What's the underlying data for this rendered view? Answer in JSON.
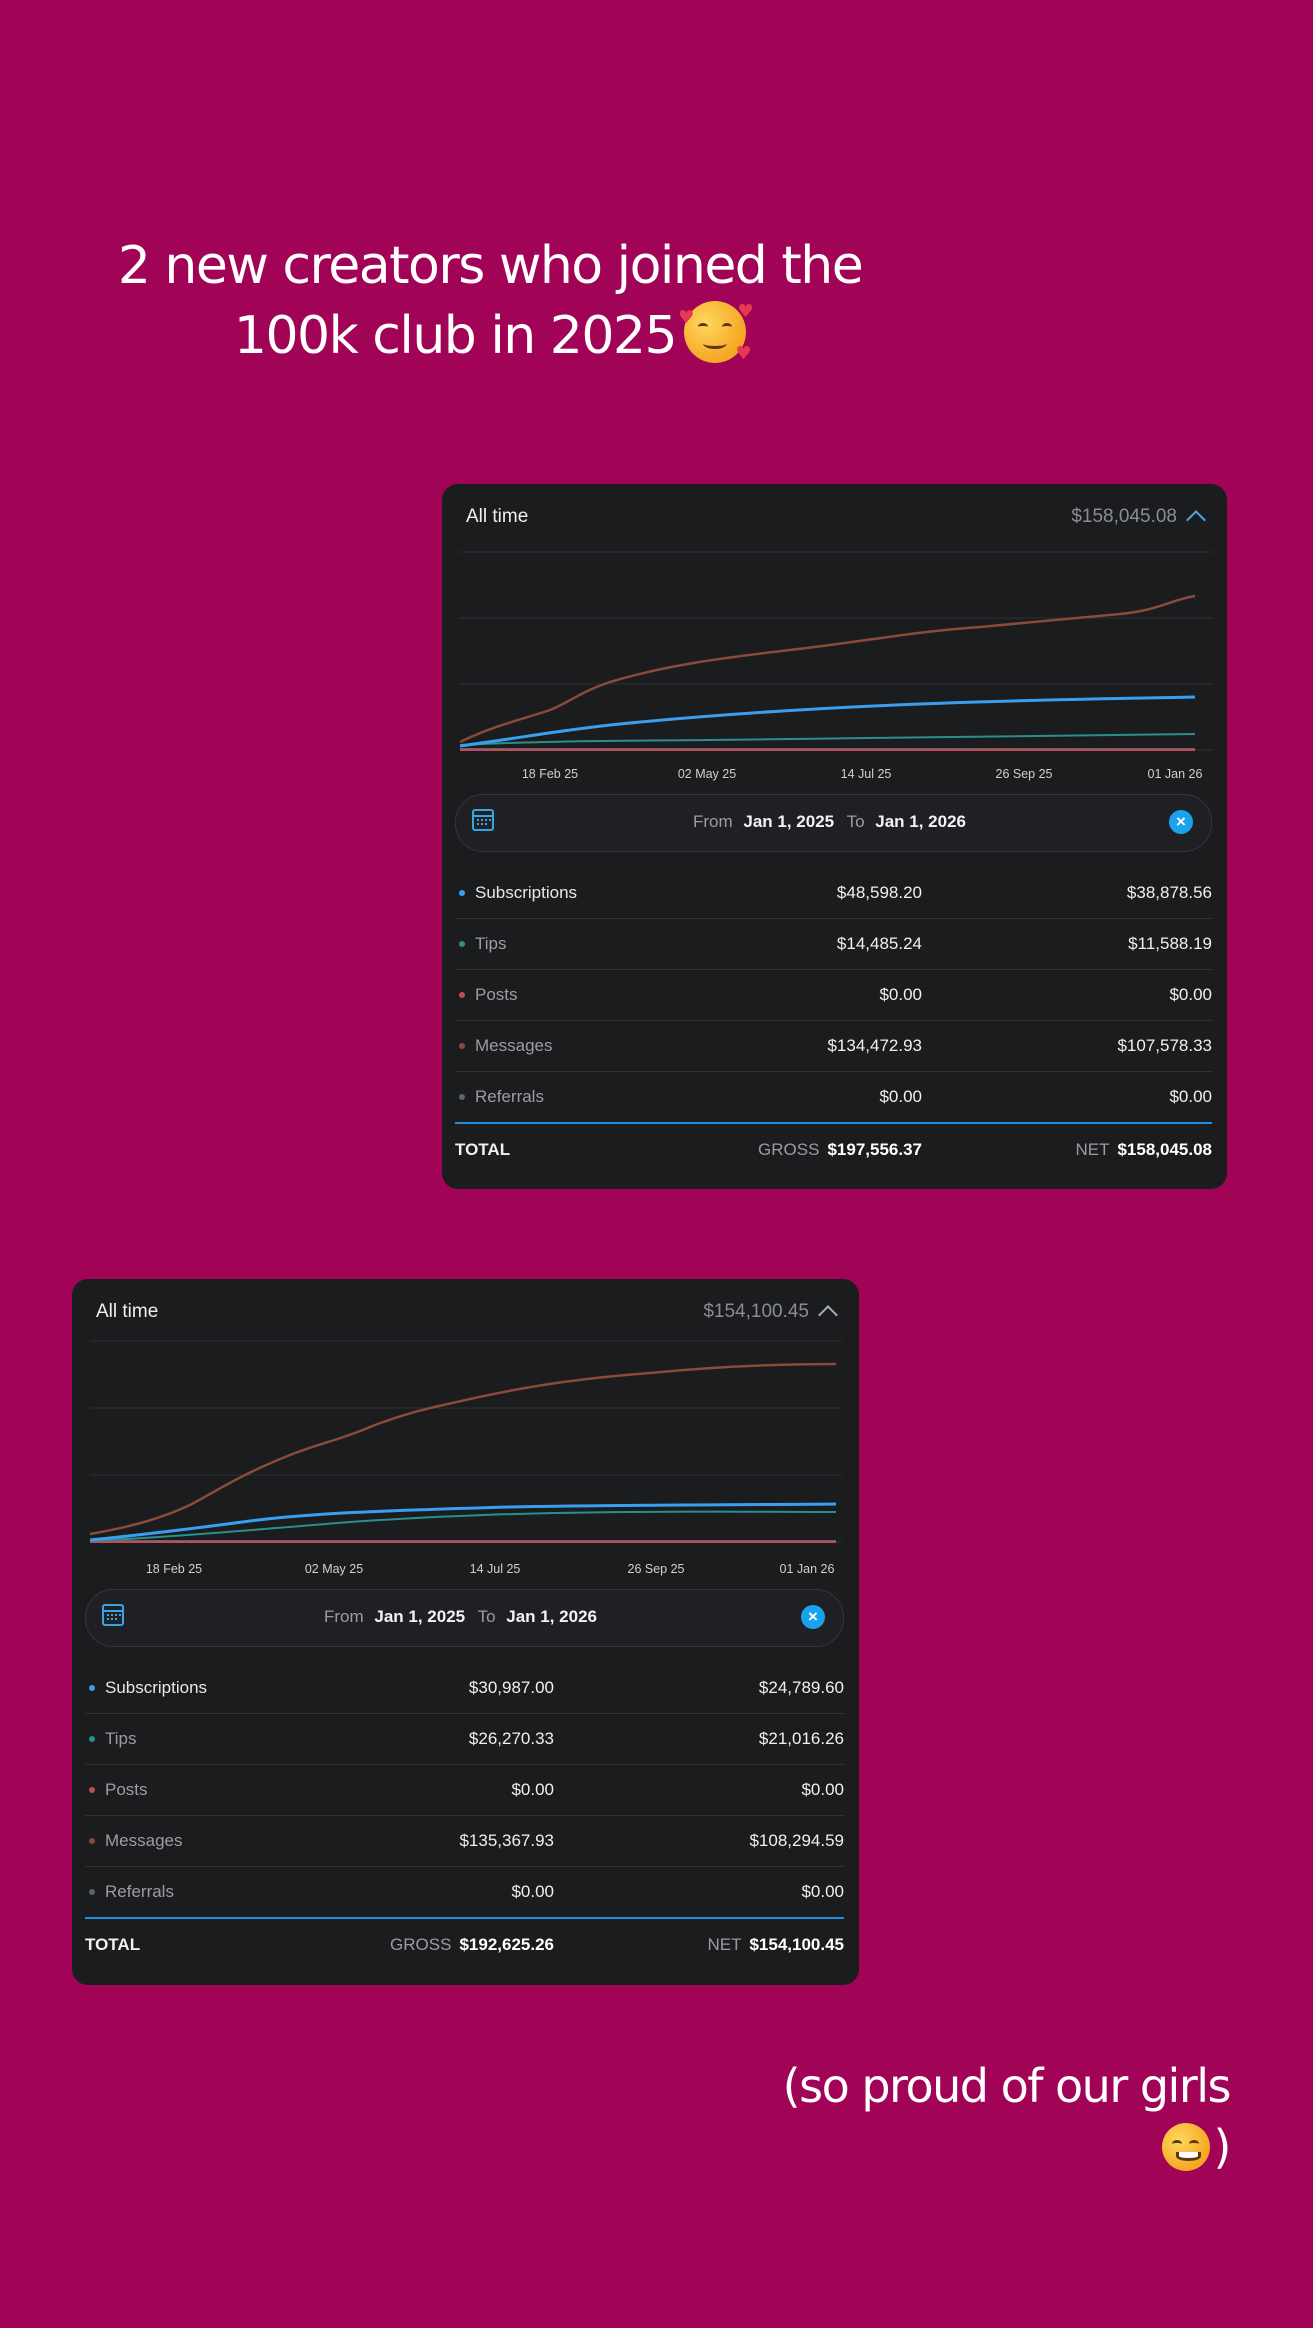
{
  "caption_top": {
    "line1": "2 new creators who joined the",
    "line2": "100k club in 2025"
  },
  "caption_bottom": {
    "before": "(so proud of our girls",
    "after": ")"
  },
  "colors": {
    "background": "#a10356",
    "subscriptions": "#3a9ff0",
    "tips": "#2a8f8c",
    "posts": "#c44a55",
    "messages": "#8a4a3c",
    "referrals": "#5b6672"
  },
  "cards": [
    {
      "title": "All time",
      "header_total": "$158,045.08",
      "x_ticks": [
        "18 Feb 25",
        "02 May 25",
        "14 Jul 25",
        "26 Sep 25",
        "01 Jan 26"
      ],
      "from_label": "From",
      "from_date": "Jan 1, 2025",
      "to_label": "To",
      "to_date": "Jan 1, 2026",
      "rows": [
        {
          "name": "Subscriptions",
          "gross": "$48,598.20",
          "net": "$38,878.56"
        },
        {
          "name": "Tips",
          "gross": "$14,485.24",
          "net": "$11,588.19"
        },
        {
          "name": "Posts",
          "gross": "$0.00",
          "net": "$0.00"
        },
        {
          "name": "Messages",
          "gross": "$134,472.93",
          "net": "$107,578.33"
        },
        {
          "name": "Referrals",
          "gross": "$0.00",
          "net": "$0.00"
        }
      ],
      "total": {
        "name": "TOTAL",
        "gross_label": "GROSS",
        "gross": "$197,556.37",
        "net_label": "NET",
        "net": "$158,045.08"
      }
    },
    {
      "title": "All time",
      "header_total": "$154,100.45",
      "x_ticks": [
        "18 Feb 25",
        "02 May 25",
        "14 Jul 25",
        "26 Sep 25",
        "01 Jan 26"
      ],
      "from_label": "From",
      "from_date": "Jan 1, 2025",
      "to_label": "To",
      "to_date": "Jan 1, 2026",
      "rows": [
        {
          "name": "Subscriptions",
          "gross": "$30,987.00",
          "net": "$24,789.60"
        },
        {
          "name": "Tips",
          "gross": "$26,270.33",
          "net": "$21,016.26"
        },
        {
          "name": "Posts",
          "gross": "$0.00",
          "net": "$0.00"
        },
        {
          "name": "Messages",
          "gross": "$135,367.93",
          "net": "$108,294.59"
        },
        {
          "name": "Referrals",
          "gross": "$0.00",
          "net": "$0.00"
        }
      ],
      "total": {
        "name": "TOTAL",
        "gross_label": "GROSS",
        "gross": "$192,625.26",
        "net_label": "NET",
        "net": "$154,100.45"
      }
    }
  ]
}
